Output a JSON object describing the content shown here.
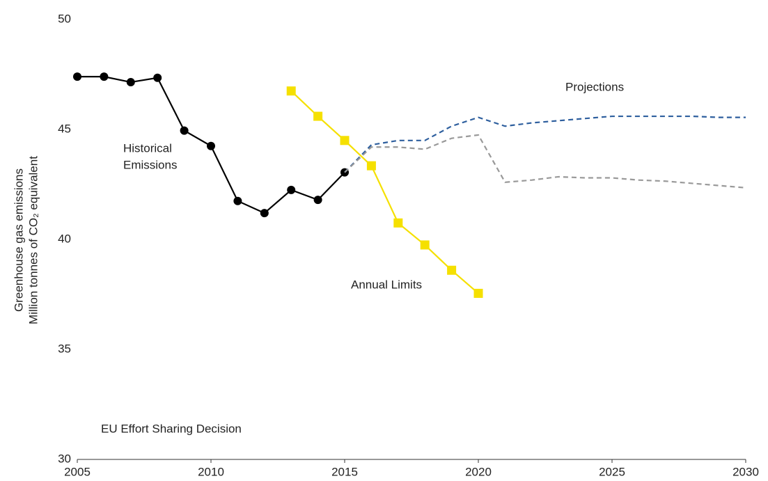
{
  "chart_data": {
    "type": "line",
    "ylabel": [
      "Greenhouse gas emissions",
      "Million tonnes of CO₂ equivalent"
    ],
    "footnote": "EU Effort Sharing Decision",
    "xlim": [
      2005,
      2030
    ],
    "xticks": [
      2005,
      2010,
      2015,
      2020,
      2025,
      2030
    ],
    "ylim": [
      30,
      50
    ],
    "yticks": [
      30,
      35,
      40,
      45,
      50
    ],
    "grid": false,
    "series": [
      {
        "color": "#000000",
        "marker": "circle",
        "dashed": false,
        "x": [
          2005,
          2006,
          2007,
          2008,
          2009,
          2010,
          2011,
          2012,
          2013,
          2014,
          2015
        ],
        "values": [
          47.4,
          47.4,
          47.15,
          47.35,
          44.95,
          44.25,
          41.75,
          41.2,
          42.25,
          41.8,
          43.05
        ]
      },
      {
        "color": "#f5e000",
        "marker": "square",
        "dashed": false,
        "x": [
          2013,
          2014,
          2015,
          2016,
          2017,
          2018,
          2019,
          2020
        ],
        "values": [
          46.75,
          45.6,
          44.5,
          43.35,
          40.75,
          39.75,
          38.6,
          37.55
        ]
      },
      {
        "color": "#2e5f9e",
        "marker": "none",
        "dashed": true,
        "x": [
          2015,
          2016,
          2017,
          2018,
          2019,
          2020,
          2021,
          2022,
          2023,
          2024,
          2025,
          2026,
          2027,
          2028,
          2029,
          2030
        ],
        "values": [
          43.05,
          44.3,
          44.5,
          44.5,
          45.15,
          45.55,
          45.15,
          45.3,
          45.4,
          45.5,
          45.6,
          45.6,
          45.6,
          45.6,
          45.55,
          45.55
        ]
      },
      {
        "color": "#999999",
        "marker": "none",
        "dashed": true,
        "x": [
          2015,
          2016,
          2017,
          2018,
          2019,
          2020,
          2021,
          2022,
          2023,
          2024,
          2025,
          2026,
          2027,
          2028,
          2029,
          2030
        ],
        "values": [
          43.05,
          44.2,
          44.2,
          44.1,
          44.6,
          44.75,
          42.6,
          42.7,
          42.85,
          42.8,
          42.8,
          42.7,
          42.65,
          42.55,
          42.45,
          42.35
        ]
      }
    ],
    "annotations": [
      [
        "Historical",
        "Emissions"
      ],
      [
        "Annual Limits"
      ],
      [
        "Projections"
      ]
    ]
  }
}
